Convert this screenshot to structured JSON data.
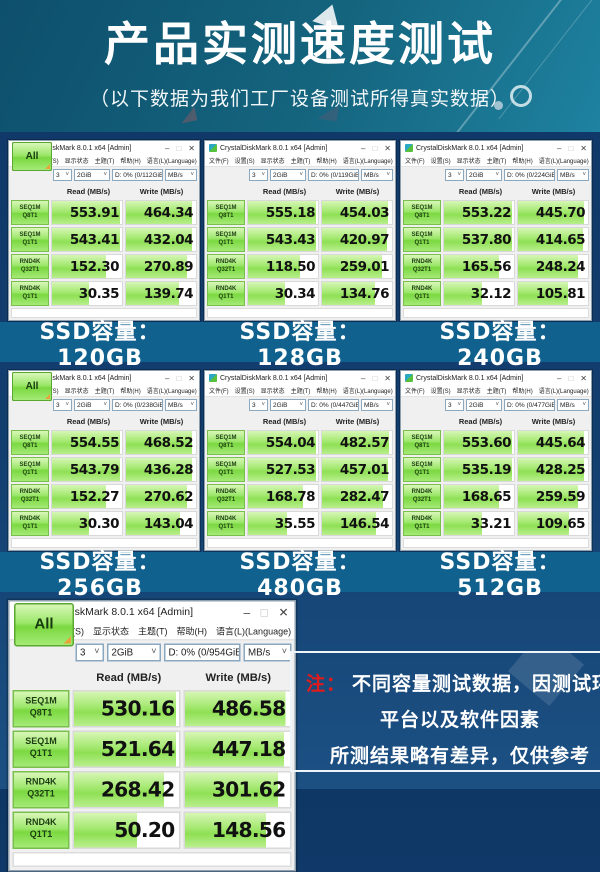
{
  "page": {
    "title": "产品实测速度测试",
    "subtitle": "（以下数据为我们工厂设备测试所得真实数据）"
  },
  "cdm": {
    "window_title": "CrystalDiskMark 8.0.1 x64 [Admin]",
    "menu_items": [
      "文件(F)",
      "设置(S)",
      "显示状态",
      "主题(T)",
      "帮助(H)",
      "语言(L)(Language)"
    ],
    "window_controls": {
      "minimize": "–",
      "maximize": "□",
      "close": "✕"
    },
    "all_button": "All",
    "caret": "˅",
    "read_header": "Read (MB/s)",
    "write_header": "Write (MB/s)",
    "row_labels": [
      [
        "SEQ1M",
        "Q8T1"
      ],
      [
        "SEQ1M",
        "Q1T1"
      ],
      [
        "RND4K",
        "Q32T1"
      ],
      [
        "RND4K",
        "Q1T1"
      ]
    ]
  },
  "panels": [
    {
      "test_count": "3",
      "test_size": "2GiB",
      "drive": "D: 0% (0/112GiB)",
      "unit": "MB/s",
      "capacity_label": "SSD容量：120GB",
      "rows": [
        {
          "read": "553.91",
          "write": "464.34"
        },
        {
          "read": "543.41",
          "write": "432.04"
        },
        {
          "read": "152.30",
          "write": "270.89"
        },
        {
          "read": "30.35",
          "write": "139.74"
        }
      ]
    },
    {
      "test_count": "3",
      "test_size": "2GiB",
      "drive": "D: 0% (0/119GiB)",
      "unit": "MB/s",
      "capacity_label": "SSD容量：128GB",
      "rows": [
        {
          "read": "555.18",
          "write": "454.03"
        },
        {
          "read": "543.43",
          "write": "420.97"
        },
        {
          "read": "118.50",
          "write": "259.01"
        },
        {
          "read": "30.34",
          "write": "134.76"
        }
      ]
    },
    {
      "test_count": "3",
      "test_size": "2GiB",
      "drive": "D: 0% (0/224GiB)",
      "unit": "MB/s",
      "capacity_label": "SSD容量：240GB",
      "rows": [
        {
          "read": "553.22",
          "write": "445.70"
        },
        {
          "read": "537.80",
          "write": "414.65"
        },
        {
          "read": "165.56",
          "write": "248.24"
        },
        {
          "read": "32.12",
          "write": "105.81"
        }
      ]
    },
    {
      "test_count": "3",
      "test_size": "2GiB",
      "drive": "D: 0% (0/238GiB)",
      "unit": "MB/s",
      "capacity_label": "SSD容量：256GB",
      "rows": [
        {
          "read": "554.55",
          "write": "468.52"
        },
        {
          "read": "543.79",
          "write": "436.28"
        },
        {
          "read": "152.27",
          "write": "270.62"
        },
        {
          "read": "30.30",
          "write": "143.04"
        }
      ]
    },
    {
      "test_count": "3",
      "test_size": "2GiB",
      "drive": "D: 0% (0/447GiB)",
      "unit": "MB/s",
      "capacity_label": "SSD容量：480GB",
      "rows": [
        {
          "read": "554.04",
          "write": "482.57"
        },
        {
          "read": "527.53",
          "write": "457.01"
        },
        {
          "read": "168.78",
          "write": "282.47"
        },
        {
          "read": "35.55",
          "write": "146.54"
        }
      ]
    },
    {
      "test_count": "3",
      "test_size": "2GiB",
      "drive": "D: 0% (0/477GiB)",
      "unit": "MB/s",
      "capacity_label": "SSD容量：512GB",
      "rows": [
        {
          "read": "553.60",
          "write": "445.64"
        },
        {
          "read": "535.19",
          "write": "428.25"
        },
        {
          "read": "168.65",
          "write": "259.59"
        },
        {
          "read": "33.21",
          "write": "109.65"
        }
      ]
    },
    {
      "test_count": "3",
      "test_size": "2GiB",
      "drive": "D: 0% (0/954GiB)",
      "unit": "MB/s",
      "capacity_label": "",
      "rows": [
        {
          "read": "530.16",
          "write": "486.58"
        },
        {
          "read": "521.64",
          "write": "447.18"
        },
        {
          "read": "268.42",
          "write": "301.62"
        },
        {
          "read": "50.20",
          "write": "148.56"
        }
      ]
    }
  ],
  "note": {
    "prefix": "注：",
    "line1": "不同容量测试数据，因测试环境",
    "line2": "平台以及软件因素",
    "line3": "所测结果略有差异，仅供参考"
  }
}
